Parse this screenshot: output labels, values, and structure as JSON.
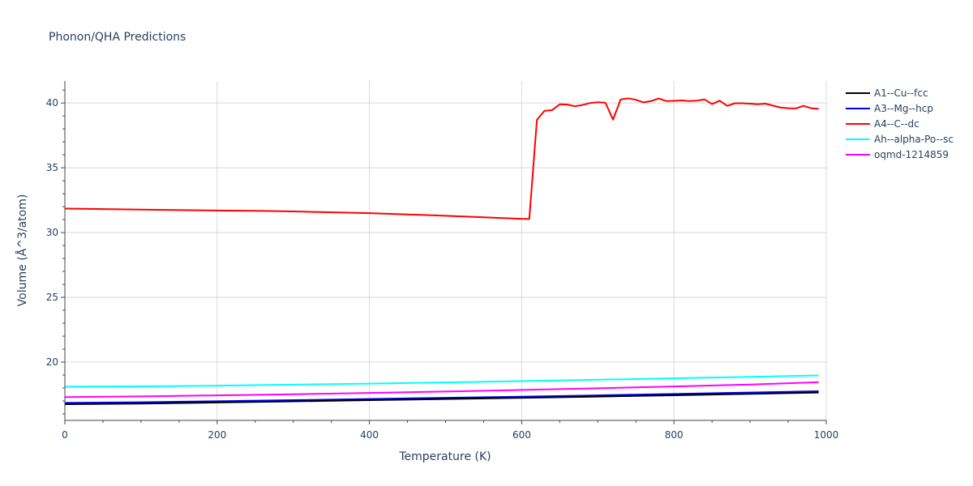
{
  "chart_data": {
    "type": "line",
    "title": "Phonon/QHA Predictions",
    "xlabel": "Temperature (K)",
    "ylabel": "Volume (Å^3/atom)",
    "xlim": [
      0,
      1000
    ],
    "ylim": [
      15.5,
      41.7
    ],
    "x_ticks": [
      0,
      200,
      400,
      600,
      800,
      1000
    ],
    "y_ticks": [
      20,
      25,
      30,
      35,
      40
    ],
    "grid": true,
    "legend": "top-right",
    "series": [
      {
        "name": "A1--Cu--fcc",
        "color": "#000000",
        "x": [
          0,
          100,
          200,
          300,
          400,
          500,
          600,
          700,
          800,
          900,
          990
        ],
        "y": [
          16.75,
          16.8,
          16.88,
          16.97,
          17.06,
          17.15,
          17.24,
          17.34,
          17.44,
          17.55,
          17.65
        ]
      },
      {
        "name": "A3--Mg--hcp",
        "color": "#0000ff",
        "x": [
          0,
          100,
          200,
          300,
          400,
          500,
          600,
          700,
          800,
          900,
          990
        ],
        "y": [
          16.85,
          16.9,
          16.98,
          17.06,
          17.15,
          17.24,
          17.33,
          17.43,
          17.54,
          17.65,
          17.75
        ]
      },
      {
        "name": "A4--C--dc",
        "color": "#ff0000",
        "x": [
          0,
          100,
          200,
          250,
          300,
          400,
          500,
          550,
          600,
          610,
          620,
          630,
          640,
          650,
          660,
          670,
          680,
          690,
          700,
          710,
          720,
          730,
          740,
          750,
          760,
          770,
          780,
          790,
          800,
          810,
          820,
          830,
          840,
          850,
          860,
          870,
          880,
          890,
          900,
          910,
          920,
          930,
          940,
          950,
          960,
          970,
          980,
          990
        ],
        "y": [
          31.85,
          31.77,
          31.7,
          31.68,
          31.63,
          31.5,
          31.3,
          31.18,
          31.06,
          31.05,
          38.7,
          39.4,
          39.45,
          39.9,
          39.88,
          39.75,
          39.85,
          40.0,
          40.06,
          40.02,
          38.72,
          40.28,
          40.36,
          40.25,
          40.05,
          40.15,
          40.35,
          40.15,
          40.17,
          40.2,
          40.15,
          40.18,
          40.28,
          39.92,
          40.18,
          39.78,
          39.98,
          39.98,
          39.95,
          39.9,
          39.95,
          39.8,
          39.65,
          39.6,
          39.58,
          39.78,
          39.6,
          39.55
        ]
      },
      {
        "name": "Ah--alpha-Po--sc",
        "color": "#00ffff",
        "x": [
          0,
          100,
          200,
          300,
          400,
          500,
          600,
          700,
          800,
          900,
          990
        ],
        "y": [
          18.1,
          18.13,
          18.18,
          18.26,
          18.34,
          18.43,
          18.53,
          18.64,
          18.75,
          18.86,
          18.97
        ]
      },
      {
        "name": "oqmd-1214859",
        "color": "#ff00ff",
        "x": [
          0,
          100,
          200,
          300,
          400,
          500,
          600,
          700,
          800,
          900,
          990
        ],
        "y": [
          17.3,
          17.35,
          17.43,
          17.52,
          17.62,
          17.73,
          17.85,
          17.98,
          18.12,
          18.27,
          18.45
        ]
      }
    ]
  }
}
